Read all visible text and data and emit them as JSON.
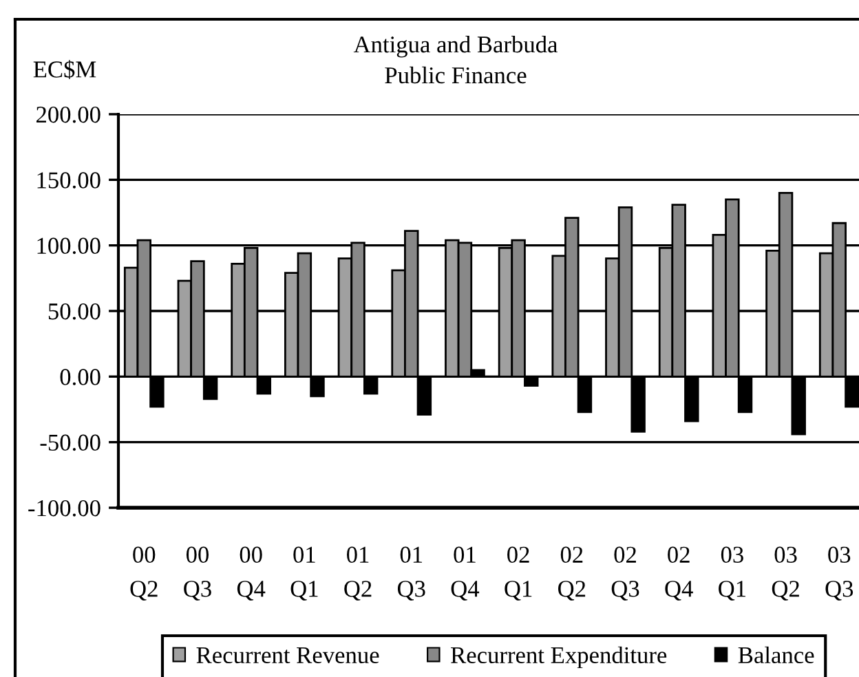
{
  "chart_data": {
    "type": "bar",
    "title": "Antigua and Barbuda\nPublic Finance",
    "ylabel": "EC$M",
    "categories": [
      "00\nQ2",
      "00\nQ3",
      "00\nQ4",
      "01\nQ1",
      "01\nQ2",
      "01\nQ3",
      "01\nQ4",
      "02\nQ1",
      "02\nQ2",
      "02\nQ3",
      "02\nQ4",
      "03\nQ1",
      "03\nQ2",
      "03\nQ3"
    ],
    "series": [
      {
        "name": "Recurrent Revenue",
        "color": "#a0a0a0",
        "values": [
          83,
          73,
          86,
          79,
          90,
          81,
          104,
          98,
          92,
          90,
          98,
          108,
          96,
          94
        ]
      },
      {
        "name": "Recurrent Expenditure",
        "color": "#888888",
        "values": [
          104,
          88,
          98,
          94,
          102,
          111,
          102,
          104,
          121,
          129,
          131,
          135,
          140,
          117
        ]
      },
      {
        "name": "Balance",
        "color": "#000000",
        "values": [
          -23,
          -17,
          -13,
          -15,
          -13,
          -29,
          5,
          -7,
          -27,
          -42,
          -34,
          -27,
          -44,
          -23
        ]
      }
    ],
    "ylim": [
      -100,
      200
    ],
    "yticks": [
      {
        "value": -100,
        "label": "-100.00"
      },
      {
        "value": -50,
        "label": "-50.00"
      },
      {
        "value": 0,
        "label": "0.00"
      },
      {
        "value": 50,
        "label": "50.00"
      },
      {
        "value": 100,
        "label": "100.00"
      },
      {
        "value": 150,
        "label": "150.00"
      },
      {
        "value": 200,
        "label": "200.00"
      }
    ],
    "grid": "y",
    "legend": "bottom"
  }
}
